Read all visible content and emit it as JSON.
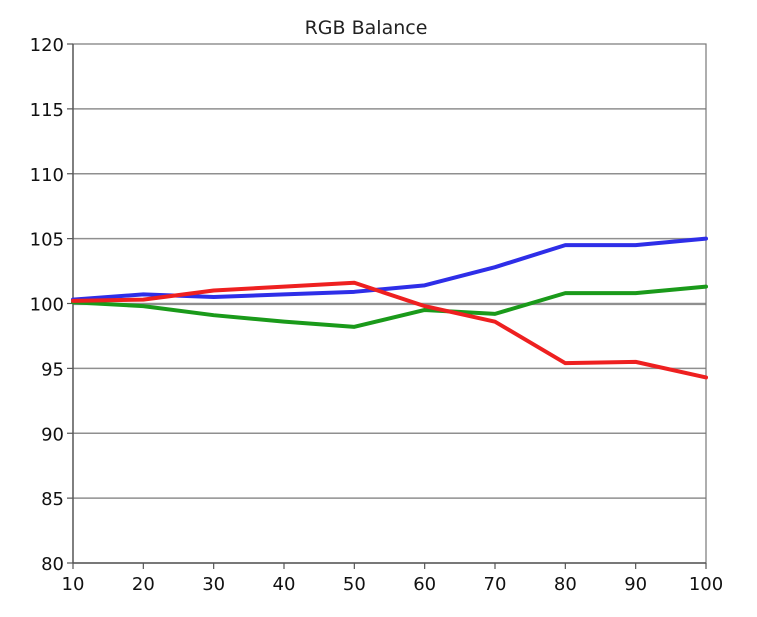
{
  "chart_data": {
    "type": "line",
    "title": "RGB Balance",
    "xlabel": "",
    "ylabel": "",
    "x": [
      10,
      20,
      30,
      40,
      50,
      60,
      70,
      80,
      90,
      100
    ],
    "xlim": [
      10,
      100
    ],
    "ylim": [
      80,
      120
    ],
    "x_ticks": [
      "10",
      "20",
      "30",
      "40",
      "50",
      "60",
      "70",
      "80",
      "90",
      "100"
    ],
    "y_ticks": [
      "80",
      "85",
      "90",
      "95",
      "100",
      "105",
      "110",
      "115",
      "120"
    ],
    "grid": true,
    "series": [
      {
        "color": "#2e2ee8",
        "values": [
          100.3,
          100.7,
          100.5,
          100.7,
          100.9,
          101.4,
          102.8,
          104.5,
          104.5,
          105.0
        ]
      },
      {
        "color": "#1a9a1a",
        "values": [
          100.1,
          99.8,
          99.1,
          98.6,
          98.2,
          99.5,
          99.2,
          100.8,
          100.8,
          101.3
        ]
      },
      {
        "color": "#ee2020",
        "values": [
          100.2,
          100.3,
          101.0,
          101.3,
          101.6,
          99.8,
          98.6,
          95.4,
          95.5,
          94.3
        ]
      }
    ]
  }
}
